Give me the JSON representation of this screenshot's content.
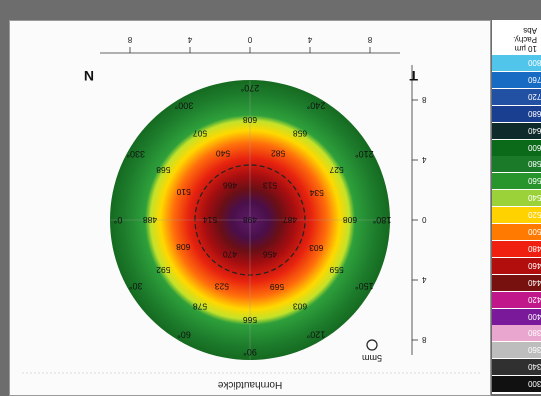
{
  "title": "Hornhautdicke",
  "orientation": {
    "left": "N",
    "right": "T"
  },
  "scale_label": "5mm",
  "meridian_labels": [
    "0°",
    "30°",
    "60°",
    "90°",
    "120°",
    "150°",
    "180°",
    "210°",
    "240°",
    "270°",
    "300°",
    "330°"
  ],
  "top_axis_ticks": [
    "8",
    "4",
    "0",
    "4",
    "8"
  ],
  "right_axis_ticks": [
    "8",
    "4",
    "0",
    "4",
    "8"
  ],
  "thickness_values": [
    "488",
    "592",
    "578",
    "566",
    "603",
    "559",
    "608",
    "527",
    "658",
    "608",
    "507",
    "568",
    "608",
    "523",
    "569",
    "603",
    "534",
    "582",
    "540",
    "510",
    "514",
    "470",
    "456",
    "487",
    "513",
    "466",
    "498"
  ],
  "legend": {
    "header": [
      "10 µm",
      "Pachy.",
      "Abs"
    ],
    "items": [
      {
        "label": "800",
        "color": "#52c6ea"
      },
      {
        "label": "760",
        "color": "#176bc2"
      },
      {
        "label": "720",
        "color": "#2251a3"
      },
      {
        "label": "680",
        "color": "#1a3f90"
      },
      {
        "label": "640",
        "color": "#0f2a2a"
      },
      {
        "label": "600",
        "color": "#0b6a1a"
      },
      {
        "label": "580",
        "color": "#1b7a2a"
      },
      {
        "label": "560",
        "color": "#27952c"
      },
      {
        "label": "540",
        "color": "#9bd23a"
      },
      {
        "label": "520",
        "color": "#ffd200"
      },
      {
        "label": "500",
        "color": "#ff7a00"
      },
      {
        "label": "480",
        "color": "#ef2010"
      },
      {
        "label": "460",
        "color": "#b20e0e"
      },
      {
        "label": "440",
        "color": "#76110f"
      },
      {
        "label": "420",
        "color": "#c0178a"
      },
      {
        "label": "400",
        "color": "#7a1a9a"
      },
      {
        "label": "380",
        "color": "#e9a6cf"
      },
      {
        "label": "360",
        "color": "#bdbdbd"
      },
      {
        "label": "340",
        "color": "#303030"
      },
      {
        "label": "300",
        "color": "#111111"
      }
    ]
  }
}
